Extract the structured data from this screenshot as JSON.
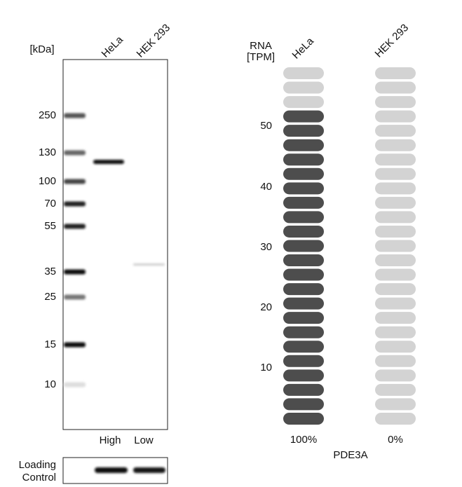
{
  "western_blot": {
    "unit_label": "[kDa]",
    "lanes": [
      "HeLa",
      "HEK 293"
    ],
    "markers": [
      "250",
      "130",
      "100",
      "70",
      "55",
      "35",
      "25",
      "15",
      "10"
    ],
    "lane_levels": [
      "High",
      "Low"
    ],
    "loading_control": [
      "Loading",
      "Control"
    ]
  },
  "rna": {
    "axis_label": [
      "RNA",
      "[TPM]"
    ],
    "cell_lines": [
      "HeLa",
      "HEK 293"
    ],
    "ticks": [
      "10",
      "20",
      "30",
      "40",
      "50"
    ],
    "percentages": [
      "100%",
      "0%"
    ],
    "gene": "PDE3A"
  }
}
